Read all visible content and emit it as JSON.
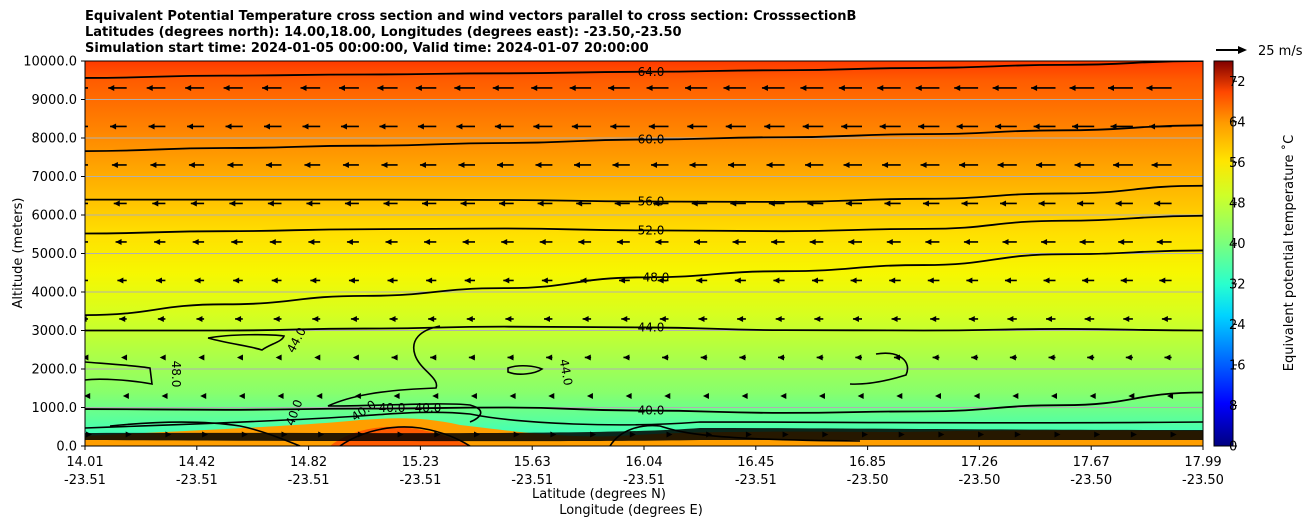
{
  "chart_data": {
    "type": "contour",
    "title": [
      "Equivalent Potential Temperature cross section and wind vectors parallel to cross section: CrosssectionB",
      "Latitudes (degrees north): 14.00,18.00, Longitudes (degrees east): -23.50,-23.50",
      "Simulation start time: 2024-01-05 00:00:00, Valid time: 2024-01-07 20:00:00"
    ],
    "ylabel": "Altitude (meters)",
    "xlabel_lat": "Latitude (degrees N)",
    "xlabel_lon": "Longitude (degrees E)",
    "ylim": [
      0,
      10000
    ],
    "yticks": [
      "0.0",
      "1000.0",
      "2000.0",
      "3000.0",
      "4000.0",
      "5000.0",
      "6000.0",
      "7000.0",
      "8000.0",
      "9000.0",
      "10000.0"
    ],
    "xticks_lat": [
      "14.01",
      "14.42",
      "14.82",
      "15.23",
      "15.63",
      "16.04",
      "16.45",
      "16.85",
      "17.26",
      "17.67",
      "17.99"
    ],
    "xticks_lon": [
      "-23.51",
      "-23.51",
      "-23.51",
      "-23.51",
      "-23.51",
      "-23.51",
      "-23.51",
      "-23.50",
      "-23.50",
      "-23.50",
      "-23.50"
    ],
    "colorbar": {
      "label": "Equivalent potential temperature ˚C",
      "range": [
        0,
        76
      ],
      "ticks": [
        "0",
        "8",
        "16",
        "24",
        "32",
        "40",
        "48",
        "56",
        "64",
        "72"
      ]
    },
    "quiver_key": "25 m/s",
    "contour_levels": [
      {
        "level": 64,
        "label": "64.0",
        "alt": [
          9560,
          9620,
          9650,
          9680,
          9720,
          9760,
          9820,
          9900,
          10000
        ]
      },
      {
        "level": 60,
        "label": "60.0",
        "alt": [
          7660,
          7740,
          7800,
          7870,
          7960,
          8020,
          8100,
          8200,
          8330
        ]
      },
      {
        "level": 56,
        "label": "56.0",
        "alt": [
          6400,
          6400,
          6400,
          6390,
          6350,
          6340,
          6420,
          6560,
          6760
        ]
      },
      {
        "level": 52,
        "label": "52.0",
        "alt": [
          5520,
          5580,
          5630,
          5650,
          5600,
          5580,
          5640,
          5850,
          5980
        ]
      },
      {
        "level": 48,
        "label": "48.0",
        "alt": [
          3400,
          3680,
          3900,
          4100,
          4380,
          4540,
          4700,
          4980,
          5080
        ]
      },
      {
        "level": 44,
        "label": "44.0",
        "alt": [
          3000,
          3000,
          3050,
          3100,
          3080,
          3010,
          3000,
          3040,
          3000
        ]
      },
      {
        "level": 40,
        "label": "40.0",
        "alt": [
          960,
          940,
          970,
          1000,
          920,
          860,
          900,
          1060,
          1390
        ]
      }
    ],
    "extra_labels": [
      "48.0",
      "44.0",
      "44.0",
      "40.0",
      "40.0",
      "40.0",
      "40.0"
    ]
  }
}
